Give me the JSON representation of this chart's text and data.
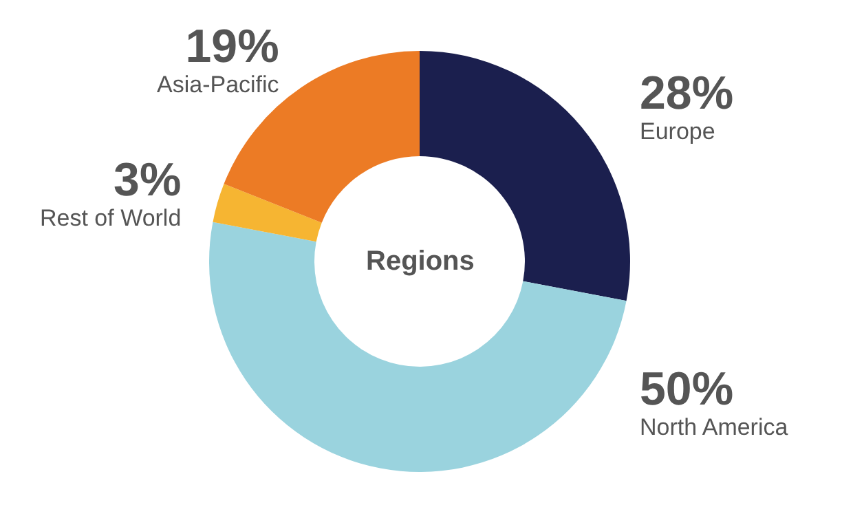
{
  "chart_data": {
    "type": "donut",
    "title": "Regions",
    "categories": [
      "Europe",
      "North America",
      "Rest of World",
      "Asia-Pacific"
    ],
    "values": [
      28,
      50,
      3,
      19
    ],
    "value_labels": [
      "28%",
      "50%",
      "3%",
      "19%"
    ],
    "colors": [
      "#1b1f4e",
      "#9ad3de",
      "#f6b532",
      "#ec7b25"
    ],
    "legend": false
  }
}
